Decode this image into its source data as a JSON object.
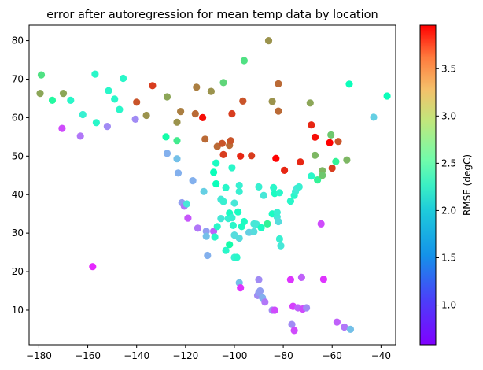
{
  "chart_data": {
    "type": "scatter",
    "title": "error after autoregression for mean temp data by location",
    "xlabel": "",
    "ylabel": "",
    "xlim": [
      -184,
      -34
    ],
    "ylim": [
      1,
      84
    ],
    "xticks": [
      "−180",
      "−160",
      "−140",
      "−120",
      "−100",
      "−80",
      "−60",
      "−40"
    ],
    "xtick_values": [
      -180,
      -160,
      -140,
      -120,
      -100,
      -80,
      -60,
      -40
    ],
    "yticks": [
      "10",
      "20",
      "30",
      "40",
      "50",
      "60",
      "70",
      "80"
    ],
    "ytick_values": [
      10,
      20,
      30,
      40,
      50,
      60,
      70,
      80
    ],
    "grid": false,
    "colormap": "rainbow",
    "colorbar": {
      "label": "RMSE (degC)",
      "range": [
        0.58,
        3.96
      ],
      "ticks": [
        "1.0",
        "1.5",
        "2.0",
        "2.5",
        "3.0",
        "3.5"
      ],
      "tick_values": [
        1.0,
        1.5,
        2.0,
        2.5,
        3.0,
        3.5
      ]
    },
    "points": [
      [
        -179.5,
        66.3,
        3.2
      ],
      [
        -179,
        71.1,
        2.8
      ],
      [
        -174.5,
        64.5,
        2.5
      ],
      [
        -170.5,
        57.2,
        0.9
      ],
      [
        -170,
        66.3,
        3.2
      ],
      [
        -167,
        64.5,
        2.0
      ],
      [
        -163,
        55.2,
        1.1
      ],
      [
        -162,
        60.8,
        1.9
      ],
      [
        -158,
        21.3,
        0.75
      ],
      [
        -157,
        71.3,
        2.0
      ],
      [
        -156.5,
        58.7,
        2.0
      ],
      [
        -152,
        57.7,
        1.2
      ],
      [
        -151.5,
        67.0,
        2.0
      ],
      [
        -149,
        64.8,
        2.0
      ],
      [
        -147,
        62.1,
        2.0
      ],
      [
        -145.5,
        70.2,
        2.0
      ],
      [
        -140.5,
        59.6,
        1.2
      ],
      [
        -140,
        64.0,
        3.6
      ],
      [
        -136,
        60.6,
        3.3
      ],
      [
        -133.5,
        68.3,
        3.7
      ],
      [
        -128,
        55.0,
        2.4
      ],
      [
        -127.5,
        65.4,
        3.2
      ],
      [
        -127.5,
        50.7,
        1.4
      ],
      [
        -123.5,
        54.0,
        2.7
      ],
      [
        -123.5,
        58.8,
        3.3
      ],
      [
        -123.5,
        49.3,
        1.5
      ],
      [
        -123,
        45.6,
        1.4
      ],
      [
        -122,
        61.6,
        3.4
      ],
      [
        -121.5,
        37.9,
        1.3
      ],
      [
        -120.5,
        37.0,
        1.1
      ],
      [
        -119.5,
        37.6,
        1.8
      ],
      [
        -119,
        33.9,
        0.95
      ],
      [
        -117,
        43.6,
        1.4
      ],
      [
        -116,
        61.0,
        3.5
      ],
      [
        -115.5,
        67.9,
        3.4
      ],
      [
        -115,
        31.3,
        1.1
      ],
      [
        -113,
        60.0,
        3.9
      ],
      [
        -112.5,
        40.8,
        1.6
      ],
      [
        -112,
        54.4,
        3.5
      ],
      [
        -111.5,
        30.5,
        1.3
      ],
      [
        -111.5,
        29.2,
        1.5
      ],
      [
        -111,
        24.2,
        1.4
      ],
      [
        -109.5,
        66.8,
        3.3
      ],
      [
        -108.5,
        45.8,
        2.2
      ],
      [
        -108.5,
        30.5,
        1.0
      ],
      [
        -108,
        29.0,
        2.0
      ],
      [
        -107.5,
        48.2,
        2.1
      ],
      [
        -107.5,
        42.8,
        2.2
      ],
      [
        -107,
        52.5,
        3.5
      ],
      [
        -107,
        31.7,
        2.0
      ],
      [
        -105.5,
        38.8,
        1.8
      ],
      [
        -105.5,
        33.8,
        1.8
      ],
      [
        -105,
        53.3,
        3.6
      ],
      [
        -104.5,
        38.2,
        1.9
      ],
      [
        -104.5,
        69.1,
        2.9
      ],
      [
        -104.5,
        50.4,
        3.7
      ],
      [
        -103.5,
        41.8,
        2.0
      ],
      [
        -103.5,
        25.5,
        2.0
      ],
      [
        -102.5,
        33.8,
        1.9
      ],
      [
        -102,
        52.8,
        3.5
      ],
      [
        -102,
        35.2,
        2.1
      ],
      [
        -102,
        27.0,
        2.4
      ],
      [
        -101.5,
        54.0,
        3.6
      ],
      [
        -101,
        47.0,
        2.0
      ],
      [
        -101,
        34.0,
        1.9
      ],
      [
        -101,
        61.0,
        3.7
      ],
      [
        -100.5,
        32.0,
        2.0
      ],
      [
        -100,
        23.7,
        1.9
      ],
      [
        -100,
        37.8,
        1.8
      ],
      [
        -100,
        29.5,
        1.7
      ],
      [
        -99,
        23.7,
        2.0
      ],
      [
        -98.5,
        35.5,
        2.1
      ],
      [
        -98,
        40.8,
        1.9
      ],
      [
        -98,
        42.4,
        1.9
      ],
      [
        -98,
        28.7,
        1.7
      ],
      [
        -98,
        17.1,
        1.5
      ],
      [
        -97.5,
        15.8,
        0.8
      ],
      [
        -97.5,
        50.0,
        3.8
      ],
      [
        -97,
        31.7,
        2.1
      ],
      [
        -96.5,
        64.3,
        3.6
      ],
      [
        -96,
        74.8,
        2.8
      ],
      [
        -96,
        33.0,
        2.1
      ],
      [
        -94,
        30.2,
        1.6
      ],
      [
        -93,
        50.1,
        3.7
      ],
      [
        -92,
        32.4,
        1.8
      ],
      [
        -92,
        30.4,
        1.7
      ],
      [
        -91,
        32.3,
        1.8
      ],
      [
        -90.5,
        13.8,
        1.2
      ],
      [
        -90,
        17.9,
        1.2
      ],
      [
        -90,
        14.6,
        1.3
      ],
      [
        -90,
        42.0,
        1.9
      ],
      [
        -89.5,
        15.0,
        1.3
      ],
      [
        -89,
        31.4,
        2.1
      ],
      [
        -88.5,
        13.2,
        1.4
      ],
      [
        -88,
        39.8,
        1.8
      ],
      [
        -87.5,
        12.1,
        1.1
      ],
      [
        -86,
        80.0,
        3.3
      ],
      [
        -86.5,
        32.4,
        2.6
      ],
      [
        -84.5,
        35.0,
        2.1
      ],
      [
        -84.5,
        64.2,
        3.3
      ],
      [
        -84.5,
        10.0,
        1.2
      ],
      [
        -84,
        41.8,
        2.0
      ],
      [
        -83.5,
        10.0,
        0.9
      ],
      [
        -83.5,
        40.3,
        2.1
      ],
      [
        -83,
        49.4,
        4.0
      ],
      [
        -82,
        68.8,
        3.5
      ],
      [
        -82.5,
        34.2,
        1.8
      ],
      [
        -82.5,
        35.4,
        1.9
      ],
      [
        -82,
        33.0,
        1.7
      ],
      [
        -82,
        61.7,
        3.5
      ],
      [
        -81.5,
        28.5,
        1.9
      ],
      [
        -81.5,
        40.5,
        2.0
      ],
      [
        -81,
        26.7,
        1.8
      ],
      [
        -79.5,
        46.3,
        3.8
      ],
      [
        -77,
        17.9,
        0.8
      ],
      [
        -77,
        38.3,
        2.0
      ],
      [
        -76.5,
        6.3,
        1.2
      ],
      [
        -76,
        11.0,
        0.85
      ],
      [
        -75.5,
        4.7,
        0.9
      ],
      [
        -75.5,
        39.8,
        2.0
      ],
      [
        -75,
        40.8,
        1.9
      ],
      [
        -74.5,
        41.6,
        1.8
      ],
      [
        -74,
        10.6,
        1.0
      ],
      [
        -73.5,
        42.0,
        1.9
      ],
      [
        -73,
        48.5,
        3.8
      ],
      [
        -72.5,
        18.5,
        1.0
      ],
      [
        -72,
        10.3,
        0.9
      ],
      [
        -70.5,
        10.6,
        1.2
      ],
      [
        -69,
        63.8,
        3.2
      ],
      [
        -68.5,
        58.1,
        3.8
      ],
      [
        -68.5,
        44.8,
        2.0
      ],
      [
        -67,
        54.9,
        3.9
      ],
      [
        -67,
        50.2,
        3.1
      ],
      [
        -66,
        43.8,
        2.6
      ],
      [
        -64.5,
        32.4,
        0.9
      ],
      [
        -64,
        46.2,
        3.1
      ],
      [
        -64,
        45.0,
        3.0
      ],
      [
        -63.5,
        18.0,
        0.8
      ],
      [
        -61,
        53.5,
        4.0
      ],
      [
        -60.5,
        55.5,
        3.0
      ],
      [
        -60,
        46.9,
        3.7
      ],
      [
        -58.5,
        48.6,
        2.6
      ],
      [
        -58,
        6.9,
        1.0
      ],
      [
        -57.5,
        53.8,
        3.6
      ],
      [
        -55,
        5.6,
        1.1
      ],
      [
        -54,
        49.0,
        3.1
      ],
      [
        -53,
        68.7,
        2.2
      ],
      [
        -52.5,
        5.0,
        1.5
      ],
      [
        -43,
        60.1,
        1.6
      ],
      [
        -37.5,
        65.6,
        2.2
      ]
    ]
  }
}
